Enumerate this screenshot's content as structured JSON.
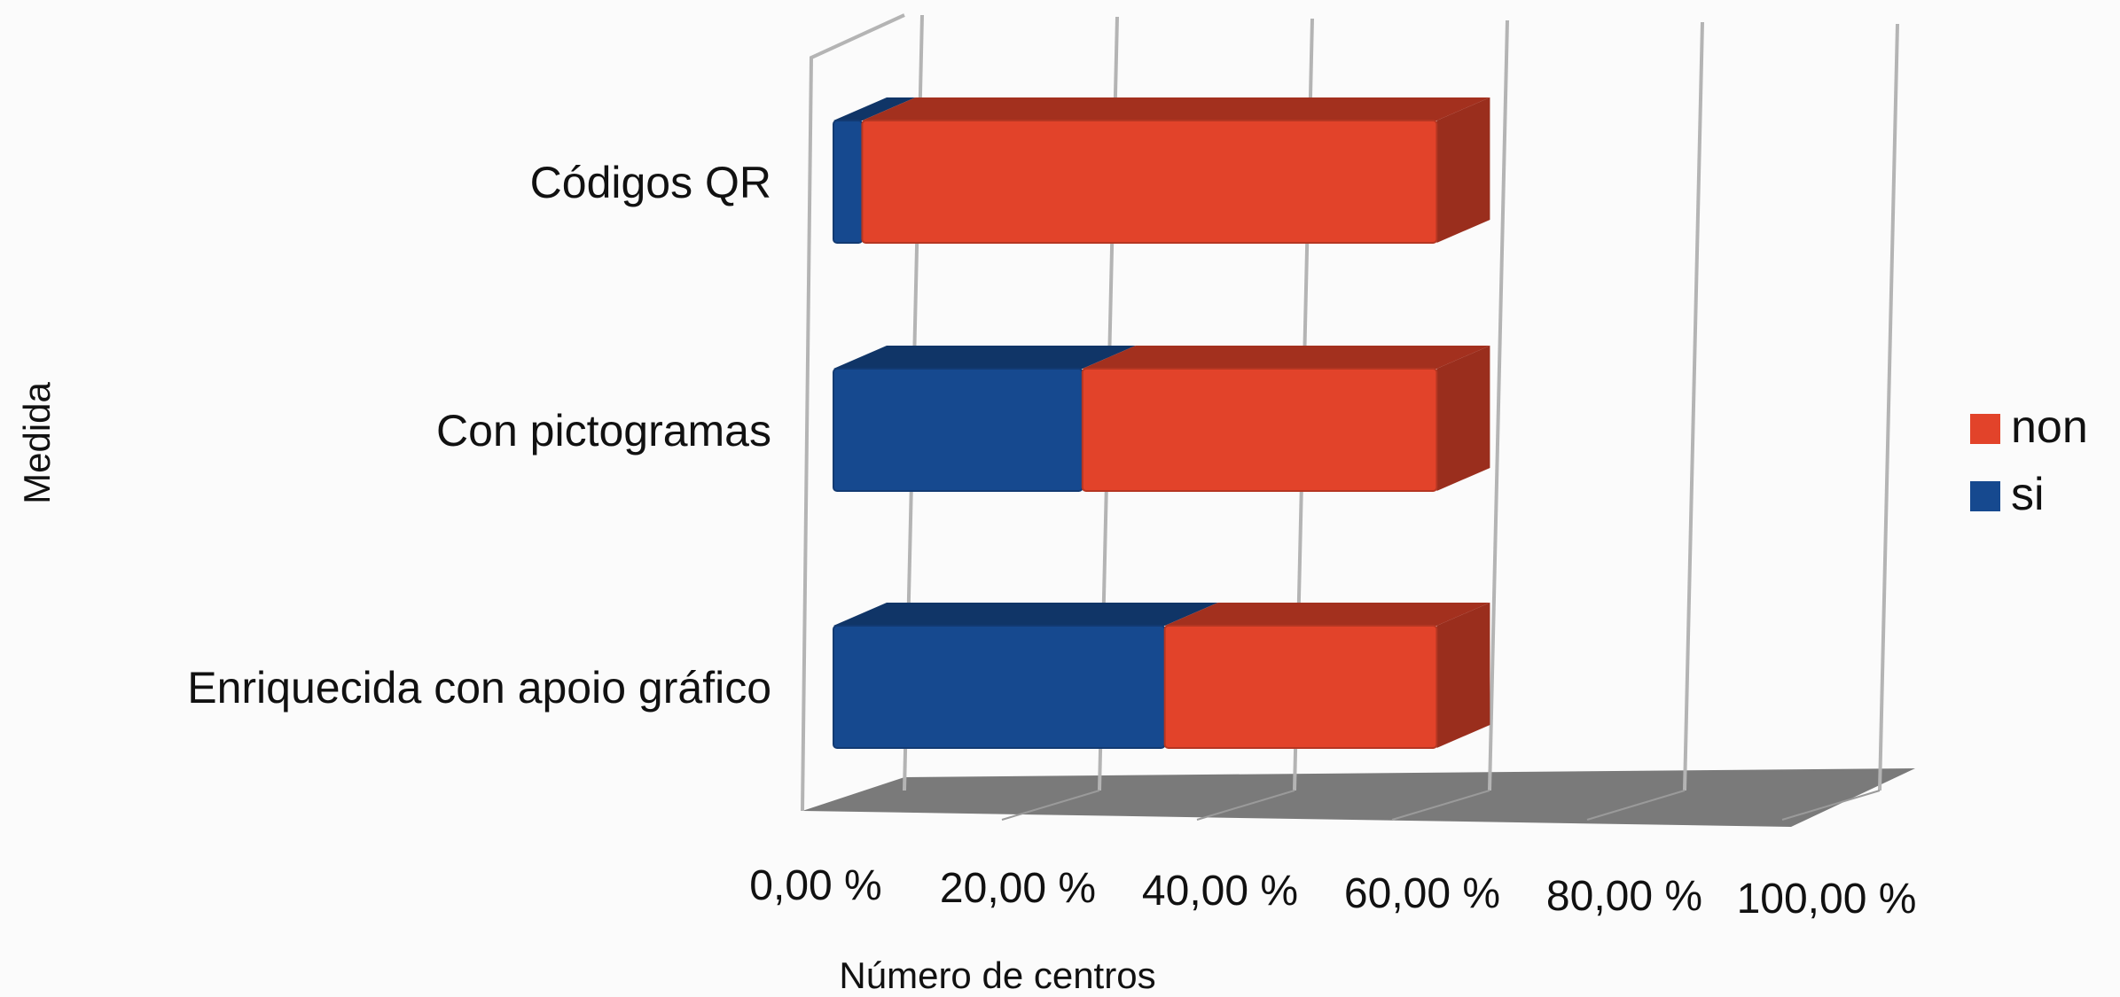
{
  "chart_data": {
    "type": "bar",
    "orientation": "horizontal",
    "stacked": true,
    "style_3d": true,
    "categories": [
      "Códigos QR",
      "Con pictogramas",
      "Enriquecida con apoio gráfico"
    ],
    "series": [
      {
        "name": "si",
        "color": "#16498f",
        "values": [
          3.0,
          26.0,
          34.6
        ]
      },
      {
        "name": "non",
        "color": "#e2432a",
        "values": [
          60.0,
          37.0,
          28.4
        ]
      }
    ],
    "xlabel": "Número de centros",
    "ylabel": "Medida",
    "xlim": [
      0,
      100
    ],
    "x_ticks": [
      "0,00 %",
      "20,00 %",
      "40,00 %",
      "60,00 %",
      "80,00 %",
      "100,00 %"
    ],
    "grid": true,
    "legend": {
      "position": "right",
      "order": [
        "non",
        "si"
      ]
    }
  }
}
